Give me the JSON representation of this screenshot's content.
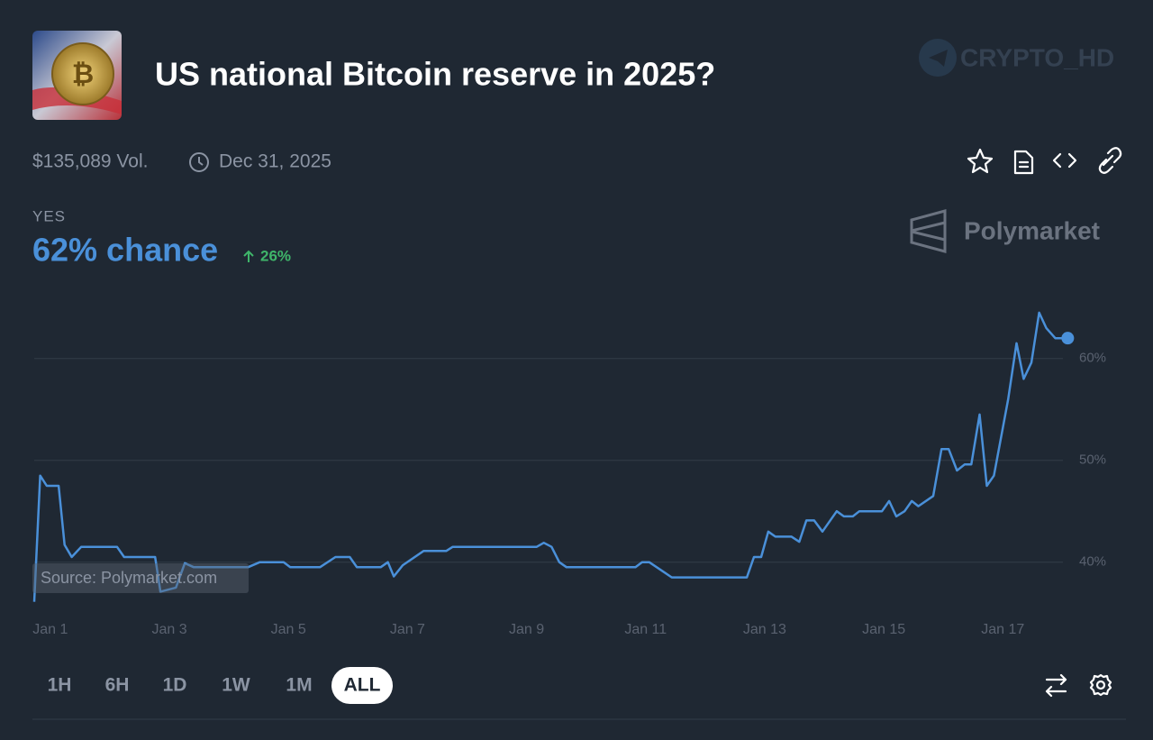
{
  "header": {
    "title": "US national Bitcoin reserve in 2025?",
    "volume": "$135,089 Vol.",
    "end_date": "Dec 31, 2025",
    "watermark": "CRYPTO_HD"
  },
  "outcome": {
    "name": "YES",
    "chance": "62% chance",
    "change": "26%"
  },
  "brand": "Polymarket",
  "ranges": [
    "1H",
    "6H",
    "1D",
    "1W",
    "1M",
    "ALL"
  ],
  "selected_range": 5,
  "chart_data": {
    "type": "line",
    "color": "#4a90d9",
    "source": "Source: Polymarket.com",
    "x": [
      0.73,
      0.83,
      0.94,
      1.14,
      1.24,
      1.36,
      1.52,
      2.12,
      2.24,
      2.76,
      2.85,
      3.11,
      3.26,
      3.41,
      4.32,
      4.52,
      4.92,
      5.03,
      5.53,
      5.79,
      6.03,
      6.15,
      6.55,
      6.67,
      6.77,
      6.92,
      7.27,
      7.65,
      7.76,
      9.17,
      9.29,
      9.42,
      9.55,
      9.67,
      10.83,
      10.94,
      11.06,
      11.44,
      12.7,
      12.82,
      12.94,
      13.06,
      13.18,
      13.45,
      13.58,
      13.7,
      13.83,
      13.97,
      14.21,
      14.33,
      14.48,
      14.59,
      14.97,
      15.09,
      15.21,
      15.35,
      15.47,
      15.58,
      15.83,
      15.97,
      16.09,
      16.23,
      16.36,
      16.47,
      16.61,
      16.73,
      16.85,
      17.09,
      17.23,
      17.35,
      17.48,
      17.61,
      17.73,
      17.88,
      18.09
    ],
    "values": [
      36.1,
      48.5,
      47.5,
      47.5,
      41.7,
      40.5,
      41.5,
      41.5,
      40.5,
      40.5,
      37.1,
      37.5,
      39.9,
      39.5,
      39.5,
      40,
      40,
      39.5,
      39.5,
      40.5,
      40.5,
      39.5,
      39.5,
      40,
      38.6,
      39.7,
      41.1,
      41.1,
      41.5,
      41.5,
      41.9,
      41.5,
      40,
      39.5,
      39.5,
      40,
      40,
      38.5,
      38.5,
      40.5,
      40.5,
      43,
      42.5,
      42.5,
      42,
      44.1,
      44.1,
      43,
      45,
      44.5,
      44.5,
      45,
      45,
      46,
      44.5,
      45,
      46,
      45.5,
      46.5,
      51.1,
      51.1,
      49,
      49.6,
      49.6,
      54.5,
      47.5,
      48.5,
      56,
      61.5,
      58,
      59.6,
      64.5,
      63,
      62,
      62
    ],
    "xlim": [
      0.73,
      18.1
    ],
    "xticks": [
      {
        "value": 1,
        "label": "Jan 1"
      },
      {
        "value": 3,
        "label": "Jan 3"
      },
      {
        "value": 5,
        "label": "Jan 5"
      },
      {
        "value": 7,
        "label": "Jan 7"
      },
      {
        "value": 9,
        "label": "Jan 9"
      },
      {
        "value": 11,
        "label": "Jan 11"
      },
      {
        "value": 13,
        "label": "Jan 13"
      },
      {
        "value": 15,
        "label": "Jan 15"
      },
      {
        "value": 17,
        "label": "Jan 17"
      }
    ],
    "ylim": [
      35.9,
      66
    ],
    "yticks": [
      {
        "value": 40,
        "label": "40%"
      },
      {
        "value": 50,
        "label": "50%"
      },
      {
        "value": 60,
        "label": "60%"
      }
    ],
    "grid": true
  }
}
